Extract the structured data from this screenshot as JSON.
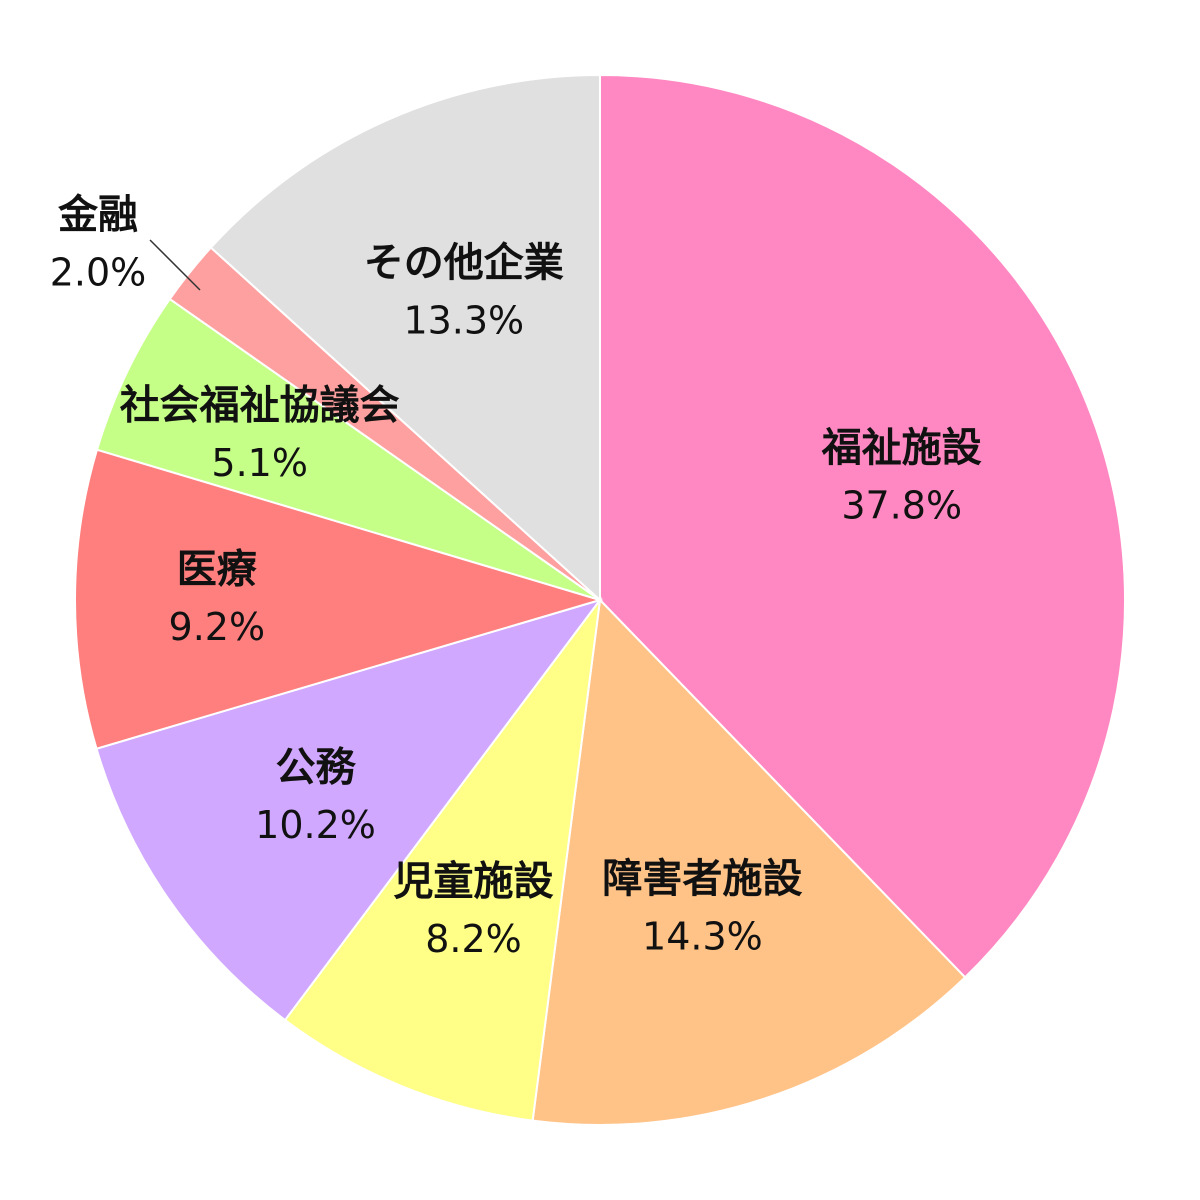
{
  "chart_data": {
    "type": "pie",
    "title": "",
    "start_angle_deg": 0,
    "direction": "clockwise",
    "legend": "none",
    "slices": [
      {
        "name": "福祉施設",
        "value": 37.8,
        "label": "37.8%",
        "color": "#FF88C2"
      },
      {
        "name": "障害者施設",
        "value": 14.3,
        "label": "14.3%",
        "color": "#FFC388"
      },
      {
        "name": "児童施設",
        "value": 8.2,
        "label": "8.2%",
        "color": "#FFFF88"
      },
      {
        "name": "公務",
        "value": 10.2,
        "label": "10.2%",
        "color": "#D1A8FF"
      },
      {
        "name": "医療",
        "value": 9.2,
        "label": "9.2%",
        "color": "#FF7F7F"
      },
      {
        "name": "社会福祉協議会",
        "value": 5.1,
        "label": "5.1%",
        "color": "#C6FF88"
      },
      {
        "name": "金融",
        "value": 2.0,
        "label": "2.0%",
        "color": "#FFA0A0"
      },
      {
        "name": "その他企業",
        "value": 13.3,
        "label": "13.3%",
        "color": "#E0E0E0"
      }
    ]
  }
}
